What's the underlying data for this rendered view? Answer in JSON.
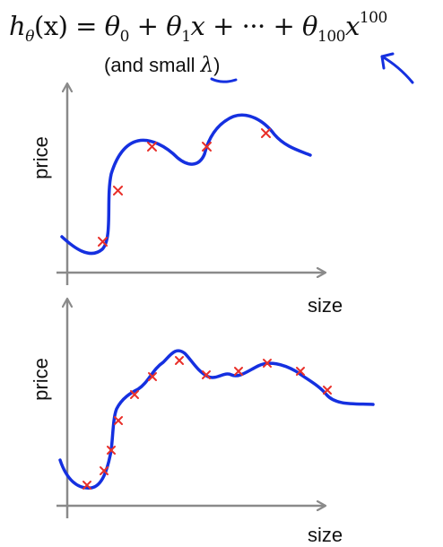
{
  "formula": {
    "lhs": "h",
    "lhs_sub": "θ",
    "arg": "(x)",
    "equals": " = ",
    "t0": "θ",
    "t0_sub": "0",
    "plus1": " + ",
    "t1": "θ",
    "t1_sub": "1",
    "t1_var": "x",
    "plus2": " + ",
    "dots": "···",
    "plus3": " + ",
    "tn": "θ",
    "tn_sub": "100",
    "tn_var": "x",
    "tn_exp": "100"
  },
  "note": {
    "prefix": "(and small ",
    "lambda": "λ",
    "suffix": ")"
  },
  "plots": [
    {
      "xlabel": "size",
      "ylabel": "price"
    },
    {
      "xlabel": "size",
      "ylabel": "price"
    }
  ],
  "colors": {
    "curve": "#1530e0",
    "data_points": "#e8302a",
    "axes": "#8a8a8a",
    "annotation": "#1530e0"
  },
  "icons": [
    "hand-drawn-arrow-icon",
    "underline-stroke-icon"
  ]
}
